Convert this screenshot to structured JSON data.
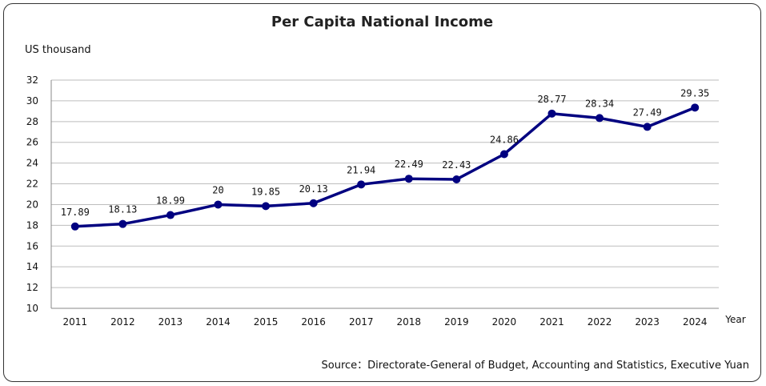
{
  "chart_data": {
    "type": "line",
    "title": "Per Capita National Income",
    "ylabel": "US thousand",
    "xlabel": "Year",
    "source": "Source：Directorate-General of Budget, Accounting and Statistics, Executive Yuan",
    "categories": [
      "2011",
      "2012",
      "2013",
      "2014",
      "2015",
      "2016",
      "2017",
      "2018",
      "2019",
      "2020",
      "2021",
      "2022",
      "2023",
      "2024"
    ],
    "values": [
      17.89,
      18.13,
      18.99,
      20,
      19.85,
      20.13,
      21.94,
      22.49,
      22.43,
      24.86,
      28.77,
      28.34,
      27.49,
      29.35
    ],
    "value_labels": [
      "17.89",
      "18.13",
      "18.99",
      "20",
      "19.85",
      "20.13",
      "21.94",
      "22.49",
      "22.43",
      "24.86",
      "28.77",
      "28.34",
      "27.49",
      "29.35"
    ],
    "yticks": [
      "10",
      "12",
      "14",
      "16",
      "18",
      "20",
      "22",
      "24",
      "26",
      "28",
      "30",
      "32"
    ],
    "ylim": [
      10,
      32
    ],
    "grid": true,
    "line_color": "#000080"
  }
}
